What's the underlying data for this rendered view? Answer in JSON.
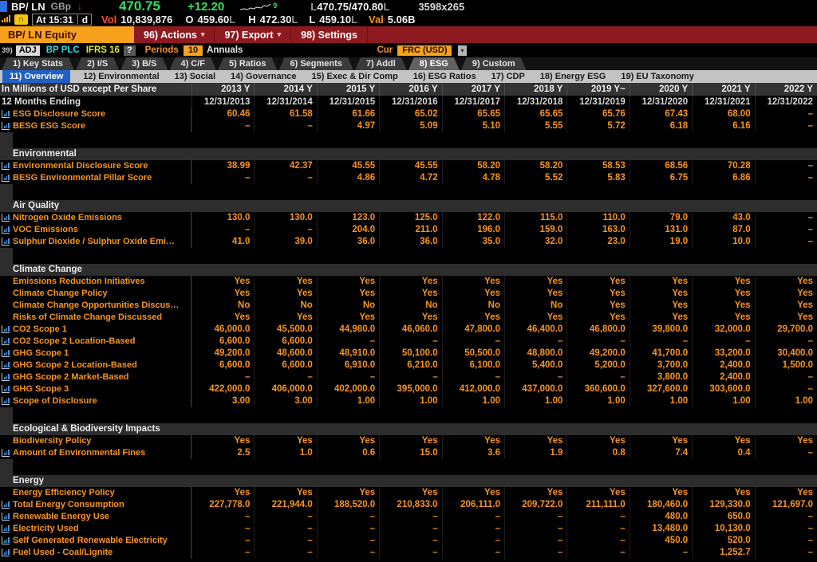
{
  "window": {
    "ticker": "BP/ LN",
    "currency": "GBp",
    "down_arrow": "↓",
    "price": "470.75",
    "change": "+12.20",
    "spark_badge": "9",
    "range_l1": "L",
    "range": "470.75/470.80",
    "range_l2": "L",
    "size": "3598x265",
    "time_chip": "At 15:31",
    "time_mode": "d",
    "vol_label": "Vol",
    "vol": "10,839,876",
    "open_label": "O",
    "open": "459.60",
    "open_marker": "L",
    "high_label": "H",
    "high": "472.30",
    "high_marker": "L",
    "low_label": "L",
    "low": "459.10",
    "low_marker": "L",
    "val_label": "Val",
    "val": "5.06B"
  },
  "menubar": {
    "security": "BP/ LN Equity",
    "actions": "96) Actions",
    "export": "97) Export",
    "settings": "98) Settings",
    "caret": "▾"
  },
  "toolbar": {
    "num": "39)",
    "adj": "ADJ",
    "name": "BP PLC",
    "standard": "IFRS 16",
    "help": "?",
    "periods_label": "Periods",
    "periods_value": "10",
    "periods_unit": "Annuals",
    "cur_label": "Cur",
    "cur_value": "FRC (USD)",
    "caret": "▾"
  },
  "tabs": {
    "items": [
      {
        "label": "1) Key Stats",
        "selected": false
      },
      {
        "label": "2) I/S",
        "selected": false
      },
      {
        "label": "3) B/S",
        "selected": false
      },
      {
        "label": "4) C/F",
        "selected": false
      },
      {
        "label": "5) Ratios",
        "selected": false
      },
      {
        "label": "6) Segments",
        "selected": false
      },
      {
        "label": "7) Addl",
        "selected": false
      },
      {
        "label": "8) ESG",
        "selected": true
      },
      {
        "label": "9) Custom",
        "selected": false
      }
    ]
  },
  "subtabs": {
    "items": [
      {
        "label": "11) Overview",
        "selected": true
      },
      {
        "label": "12) Environmental",
        "selected": false
      },
      {
        "label": "13) Social",
        "selected": false
      },
      {
        "label": "14) Governance",
        "selected": false
      },
      {
        "label": "15) Exec & Dir Comp",
        "selected": false
      },
      {
        "label": "16) ESG Ratios",
        "selected": false
      },
      {
        "label": "17) CDP",
        "selected": false
      },
      {
        "label": "18) Energy ESG",
        "selected": false
      },
      {
        "label": "19) EU Taxonomy",
        "selected": false
      }
    ]
  },
  "table": {
    "unit_note": "In Millions of USD except Per Share",
    "years": [
      "2013 Y",
      "2014 Y",
      "2015 Y",
      "2016 Y",
      "2017 Y",
      "2018 Y",
      "2019 Y~",
      "2020 Y",
      "2021 Y",
      "2022 Y"
    ],
    "ending_label": "12 Months Ending",
    "dates": [
      "12/31/2013",
      "12/31/2014",
      "12/31/2015",
      "12/31/2016",
      "12/31/2017",
      "12/31/2018",
      "12/31/2019",
      "12/31/2020",
      "12/31/2021",
      "12/31/2022"
    ],
    "rows": [
      {
        "type": "data",
        "icon": true,
        "label": "ESG Disclosure Score",
        "values": [
          "60.46",
          "61.58",
          "61.66",
          "65.02",
          "65.65",
          "65.65",
          "65.76",
          "67.43",
          "68.00",
          "–"
        ]
      },
      {
        "type": "data",
        "icon": true,
        "label": "BESG ESG Score",
        "values": [
          "–",
          "–",
          "4.97",
          "5.09",
          "5.10",
          "5.55",
          "5.72",
          "6.18",
          "6.16",
          "–"
        ]
      },
      {
        "type": "spacer"
      },
      {
        "type": "section",
        "label": "Environmental"
      },
      {
        "type": "data",
        "icon": true,
        "label": "Environmental Disclosure Score",
        "values": [
          "38.99",
          "42.37",
          "45.55",
          "45.55",
          "58.20",
          "58.20",
          "58.53",
          "68.56",
          "70.28",
          "–"
        ]
      },
      {
        "type": "data",
        "icon": true,
        "label": "BESG Environmental Pillar Score",
        "values": [
          "–",
          "–",
          "4.86",
          "4.72",
          "4.78",
          "5.52",
          "5.83",
          "6.75",
          "6.86",
          "–"
        ]
      },
      {
        "type": "spacer"
      },
      {
        "type": "section",
        "label": "Air Quality"
      },
      {
        "type": "data",
        "icon": true,
        "label": "Nitrogen Oxide Emissions",
        "values": [
          "130.0",
          "130.0",
          "123.0",
          "125.0",
          "122.0",
          "115.0",
          "110.0",
          "79.0",
          "43.0",
          "–"
        ]
      },
      {
        "type": "data",
        "icon": true,
        "label": "VOC Emissions",
        "values": [
          "–",
          "–",
          "204.0",
          "211.0",
          "196.0",
          "159.0",
          "163.0",
          "131.0",
          "87.0",
          "–"
        ]
      },
      {
        "type": "data",
        "icon": true,
        "label": "Sulphur Dioxide / Sulphur Oxide Emi…",
        "values": [
          "41.0",
          "39.0",
          "36.0",
          "36.0",
          "35.0",
          "32.0",
          "23.0",
          "19.0",
          "10.0",
          "–"
        ]
      },
      {
        "type": "spacer"
      },
      {
        "type": "section",
        "label": "Climate Change"
      },
      {
        "type": "data",
        "icon": false,
        "label": "Emissions Reduction Initiatives",
        "values": [
          "Yes",
          "Yes",
          "Yes",
          "Yes",
          "Yes",
          "Yes",
          "Yes",
          "Yes",
          "Yes",
          "Yes"
        ]
      },
      {
        "type": "data",
        "icon": false,
        "label": "Climate Change Policy",
        "values": [
          "Yes",
          "Yes",
          "Yes",
          "Yes",
          "Yes",
          "Yes",
          "Yes",
          "Yes",
          "Yes",
          "Yes"
        ]
      },
      {
        "type": "data",
        "icon": false,
        "label": "Climate Change Opportunities Discus…",
        "values": [
          "No",
          "No",
          "No",
          "No",
          "No",
          "No",
          "Yes",
          "Yes",
          "Yes",
          "Yes"
        ]
      },
      {
        "type": "data",
        "icon": false,
        "label": "Risks of Climate Change Discussed",
        "values": [
          "Yes",
          "Yes",
          "Yes",
          "Yes",
          "Yes",
          "Yes",
          "Yes",
          "Yes",
          "Yes",
          "Yes"
        ]
      },
      {
        "type": "data",
        "icon": true,
        "label": "CO2 Scope 1",
        "values": [
          "46,000.0",
          "45,500.0",
          "44,980.0",
          "46,060.0",
          "47,800.0",
          "46,400.0",
          "46,800.0",
          "39,800.0",
          "32,000.0",
          "29,700.0"
        ]
      },
      {
        "type": "data",
        "icon": true,
        "label": "CO2 Scope 2 Location-Based",
        "values": [
          "6,600.0",
          "6,600.0",
          "–",
          "–",
          "–",
          "–",
          "–",
          "–",
          "–",
          "–"
        ]
      },
      {
        "type": "data",
        "icon": true,
        "label": "GHG Scope 1",
        "values": [
          "49,200.0",
          "48,600.0",
          "48,910.0",
          "50,100.0",
          "50,500.0",
          "48,800.0",
          "49,200.0",
          "41,700.0",
          "33,200.0",
          "30,400.0"
        ]
      },
      {
        "type": "data",
        "icon": true,
        "label": "GHG Scope 2 Location-Based",
        "values": [
          "6,600.0",
          "6,600.0",
          "6,910.0",
          "6,210.0",
          "6,100.0",
          "5,400.0",
          "5,200.0",
          "3,700.0",
          "2,400.0",
          "1,500.0"
        ]
      },
      {
        "type": "data",
        "icon": true,
        "label": "GHG Scope 2 Market-Based",
        "values": [
          "–",
          "–",
          "–",
          "–",
          "–",
          "–",
          "–",
          "3,800.0",
          "2,400.0",
          "–"
        ]
      },
      {
        "type": "data",
        "icon": true,
        "label": "GHG Scope 3",
        "values": [
          "422,000.0",
          "406,000.0",
          "402,000.0",
          "395,000.0",
          "412,000.0",
          "437,000.0",
          "360,600.0",
          "327,600.0",
          "303,600.0",
          "–"
        ]
      },
      {
        "type": "data",
        "icon": true,
        "label": "Scope of Disclosure",
        "values": [
          "3.00",
          "3.00",
          "1.00",
          "1.00",
          "1.00",
          "1.00",
          "1.00",
          "1.00",
          "1.00",
          "1.00"
        ]
      },
      {
        "type": "spacer"
      },
      {
        "type": "section",
        "label": "Ecological & Biodiversity Impacts"
      },
      {
        "type": "data",
        "icon": false,
        "label": "Biodiversity Policy",
        "values": [
          "Yes",
          "Yes",
          "Yes",
          "Yes",
          "Yes",
          "Yes",
          "Yes",
          "Yes",
          "Yes",
          "Yes"
        ]
      },
      {
        "type": "data",
        "icon": true,
        "label": "Amount of Environmental Fines",
        "values": [
          "2.5",
          "1.0",
          "0.6",
          "15.0",
          "3.6",
          "1.9",
          "0.8",
          "7.4",
          "0.4",
          "–"
        ]
      },
      {
        "type": "spacer"
      },
      {
        "type": "section",
        "label": "Energy"
      },
      {
        "type": "data",
        "icon": false,
        "label": "Energy Efficiency Policy",
        "values": [
          "Yes",
          "Yes",
          "Yes",
          "Yes",
          "Yes",
          "Yes",
          "Yes",
          "Yes",
          "Yes",
          "Yes"
        ]
      },
      {
        "type": "data",
        "icon": true,
        "label": "Total Energy Consumption",
        "values": [
          "227,778.0",
          "221,944.0",
          "188,520.0",
          "210,833.0",
          "206,111.0",
          "209,722.0",
          "211,111.0",
          "180,460.0",
          "129,330.0",
          "121,697.0"
        ]
      },
      {
        "type": "data",
        "icon": true,
        "label": "Renewable Energy Use",
        "values": [
          "–",
          "–",
          "–",
          "–",
          "–",
          "–",
          "–",
          "480.0",
          "650.0",
          "–"
        ]
      },
      {
        "type": "data",
        "icon": true,
        "label": "Electricity Used",
        "values": [
          "–",
          "–",
          "–",
          "–",
          "–",
          "–",
          "–",
          "13,480.0",
          "10,130.0",
          "–"
        ]
      },
      {
        "type": "data",
        "icon": true,
        "label": "Self Generated Renewable Electricity",
        "values": [
          "–",
          "–",
          "–",
          "–",
          "–",
          "–",
          "–",
          "450.0",
          "520.0",
          "–"
        ]
      },
      {
        "type": "data",
        "icon": true,
        "label": "Fuel Used - Coal/Lignite",
        "values": [
          "–",
          "–",
          "–",
          "–",
          "–",
          "–",
          "–",
          "–",
          "1,252.7",
          "–"
        ]
      }
    ]
  },
  "colors": {
    "amber": "#f79420",
    "up_green": "#2ee559",
    "down_red": "#ff2d2d",
    "menubar_red": "#8c1a20",
    "highlight_orange": "#f7a11c",
    "selected_tab_blue": "#2160c4",
    "security_cyan": "#35d5e2",
    "standard_yellow": "#e8e832"
  }
}
